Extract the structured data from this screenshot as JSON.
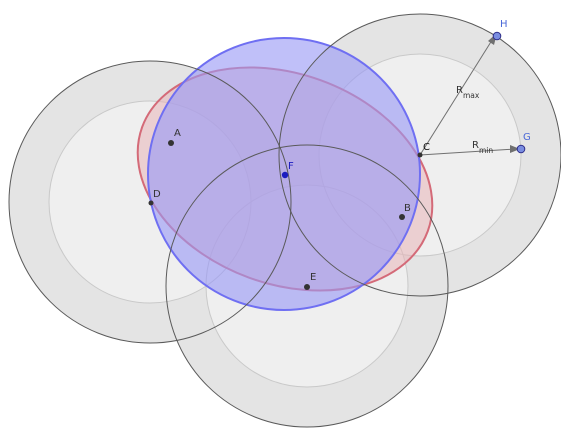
{
  "points": {
    "A": "A",
    "B": "B",
    "C": "C",
    "D": "D",
    "E": "E",
    "F": "F",
    "G": "G",
    "H": "H"
  },
  "annotations": {
    "r_max_base": "R",
    "r_max_sub": "max",
    "r_min_base": "R",
    "r_min_sub": "min"
  },
  "colors": {
    "outer_disk": "#e2e2e2",
    "inner_disk": "#ededed",
    "circle_stroke": "#555555",
    "ellipse_fill": "#e8b4b8",
    "ellipse_stroke": "#d46a78",
    "blue_disk": "#9a9af5",
    "blue_stroke": "#6f6ff2",
    "point_dark": "#333333",
    "point_blue": "#1c1cc0",
    "point_light_blue": "#7a8de0",
    "label_blue": "#4a68d8",
    "arrow": "#707070"
  }
}
